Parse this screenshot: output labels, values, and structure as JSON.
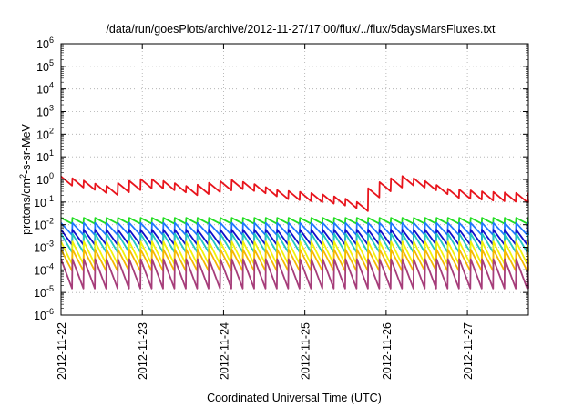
{
  "chart_data": {
    "type": "line",
    "title": "/data/run/goesPlots/archive/2012-11-27/17:00/flux/../flux/5daysMarsFluxes.txt",
    "xlabel": "Coordinated Universal Time (UTC)",
    "ylabel": {
      "base": "protons/cm",
      "sup": "2",
      "rest": "-s-sr-MeV"
    },
    "y_scale": "log",
    "ylim_exponents": [
      -6,
      6
    ],
    "y_tick_exponents": [
      -6,
      -5,
      -4,
      -3,
      -2,
      -1,
      0,
      1,
      2,
      3,
      4,
      5,
      6
    ],
    "y_tick_base": "10",
    "x_tick_labels": [
      "2012-11-22",
      "2012-11-23",
      "2012-11-24",
      "2012-11-25",
      "2012-11-26",
      "2012-11-27"
    ],
    "x_range_days": [
      0,
      5.75
    ],
    "grid": true,
    "legend": "none",
    "series": [
      {
        "color": "#e8141c",
        "kind": "storm",
        "base": [
          0.85,
          0.3,
          0.7,
          0.3,
          0.6,
          0.22,
          0.15,
          0.06,
          0.9,
          0.25,
          0.18,
          0.15
        ],
        "amp": 1.6,
        "period": 0.14
      },
      {
        "color": "#22dd22",
        "kind": "saw",
        "top": 0.02,
        "bottom": 0.011,
        "period": 0.14
      },
      {
        "color": "#1f77ff",
        "kind": "saw",
        "top": 0.012,
        "bottom": 0.0035,
        "period": 0.14
      },
      {
        "color": "#1010cc",
        "kind": "saw",
        "top": 0.006,
        "bottom": 0.0013,
        "period": 0.14
      },
      {
        "color": "#22c7c2",
        "kind": "saw",
        "top": 0.004,
        "bottom": 0.0006,
        "period": 0.14
      },
      {
        "color": "#f2f20a",
        "kind": "saw",
        "top": 0.0018,
        "bottom": 0.00018,
        "period": 0.14
      },
      {
        "color": "#f5b800",
        "kind": "saw",
        "top": 0.0008,
        "bottom": 9e-05,
        "period": 0.14
      },
      {
        "color": "#a63d7a",
        "kind": "saw",
        "top": 0.0003,
        "bottom": 1.5e-05,
        "period": 0.14
      }
    ]
  }
}
